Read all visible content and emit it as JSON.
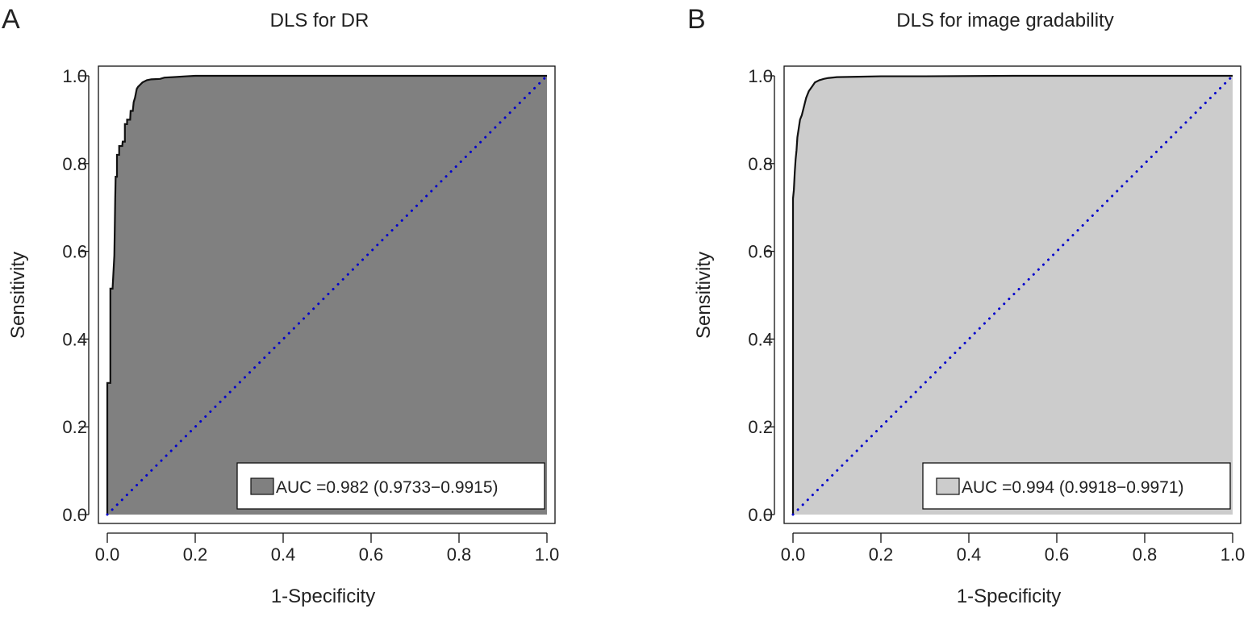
{
  "chart_data": [
    {
      "type": "area",
      "panel_label": "A",
      "title": "DLS for DR",
      "xlabel": "1-Specificity",
      "ylabel": "Sensitivity",
      "xlim": [
        0,
        1
      ],
      "ylim": [
        0,
        1
      ],
      "x_ticks": [
        "0.0",
        "0.2",
        "0.4",
        "0.6",
        "0.8",
        "1.0"
      ],
      "y_ticks": [
        "0.0",
        "0.2",
        "0.4",
        "0.6",
        "0.8",
        "1.0"
      ],
      "grid": false,
      "fill_color": "#808080",
      "roc_curve": {
        "x": [
          0,
          0,
          0.002,
          0.002,
          0.007,
          0.007,
          0.012,
          0.012,
          0.016,
          0.017,
          0.018,
          0.019,
          0.022,
          0.022,
          0.027,
          0.027,
          0.034,
          0.035,
          0.04,
          0.04,
          0.045,
          0.045,
          0.052,
          0.053,
          0.058,
          0.06,
          0.063,
          0.067,
          0.07,
          0.075,
          0.08,
          0.09,
          0.1,
          0.12,
          0.13,
          0.15,
          0.18,
          0.2,
          0.3,
          0.5,
          1.0
        ],
        "y": [
          0,
          0.3,
          0.3,
          0.3,
          0.3,
          0.515,
          0.515,
          0.515,
          0.59,
          0.65,
          0.72,
          0.77,
          0.77,
          0.82,
          0.82,
          0.84,
          0.84,
          0.85,
          0.85,
          0.89,
          0.89,
          0.9,
          0.9,
          0.92,
          0.92,
          0.94,
          0.95,
          0.97,
          0.975,
          0.98,
          0.985,
          0.99,
          0.992,
          0.993,
          0.996,
          0.997,
          0.999,
          1.0,
          1.0,
          1.0,
          1.0
        ]
      },
      "reference_line": {
        "x": [
          0,
          1
        ],
        "y": [
          0,
          1
        ],
        "color": "#0000cc",
        "style": "dotted"
      },
      "legend": {
        "text": "AUC =0.982 (0.9733−0.9915)",
        "position": "bottom-right"
      }
    },
    {
      "type": "area",
      "panel_label": "B",
      "title": "DLS for image gradability",
      "xlabel": "1-Specificity",
      "ylabel": "Sensitivity",
      "xlim": [
        0,
        1
      ],
      "ylim": [
        0,
        1
      ],
      "x_ticks": [
        "0.0",
        "0.2",
        "0.4",
        "0.6",
        "0.8",
        "1.0"
      ],
      "y_ticks": [
        "0.0",
        "0.2",
        "0.4",
        "0.6",
        "0.8",
        "1.0"
      ],
      "grid": false,
      "fill_color": "#cccccc",
      "roc_curve": {
        "x": [
          0,
          0,
          0.002,
          0.004,
          0.006,
          0.008,
          0.01,
          0.013,
          0.016,
          0.02,
          0.025,
          0.03,
          0.036,
          0.043,
          0.05,
          0.06,
          0.07,
          0.08,
          0.1,
          0.15,
          0.2,
          0.3,
          0.5,
          1.0
        ],
        "y": [
          0,
          0.72,
          0.74,
          0.78,
          0.81,
          0.83,
          0.86,
          0.88,
          0.9,
          0.91,
          0.93,
          0.95,
          0.965,
          0.975,
          0.985,
          0.99,
          0.993,
          0.995,
          0.997,
          0.998,
          0.999,
          0.999,
          1.0,
          1.0
        ]
      },
      "reference_line": {
        "x": [
          0,
          1
        ],
        "y": [
          0,
          1
        ],
        "color": "#0000cc",
        "style": "dotted"
      },
      "legend": {
        "text": "AUC =0.994 (0.9918−0.9971)",
        "position": "bottom-right"
      }
    }
  ]
}
